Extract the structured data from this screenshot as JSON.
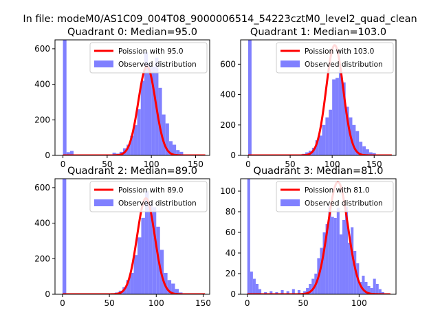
{
  "figure": {
    "suptitle": "In file: modeM0/AS1C09_004T08_9000006514_54223cztM0_level2_quad_clean"
  },
  "colors": {
    "fit_line": "#ff0000",
    "histogram": "#8080ff",
    "axes": "#000000",
    "background": "#ffffff"
  },
  "chart_data": [
    {
      "type": "bar",
      "title": "Quadrant 0: Median=95.0",
      "xlim": [
        -9,
        166
      ],
      "ylim": [
        0,
        650
      ],
      "xticks": [
        0,
        50,
        100,
        150
      ],
      "yticks": [
        0,
        200,
        400,
        600
      ],
      "legend": {
        "placement": "top-right",
        "entries": [
          "Poission with 95.0",
          "Observed distribution"
        ]
      },
      "poisson_mean": 95.0,
      "poisson_peak": 500,
      "bin_width": 4,
      "x": [
        0,
        4,
        8,
        56,
        60,
        64,
        68,
        72,
        76,
        80,
        84,
        88,
        92,
        96,
        100,
        104,
        108,
        112,
        116,
        120,
        124,
        128,
        132,
        136
      ],
      "counts": [
        650,
        18,
        25,
        15,
        10,
        20,
        40,
        60,
        110,
        170,
        260,
        420,
        580,
        520,
        500,
        550,
        380,
        230,
        180,
        80,
        60,
        30,
        20,
        5
      ]
    },
    {
      "type": "bar",
      "title": "Quadrant 1: Median=103.0",
      "xlim": [
        -9,
        176
      ],
      "ylim": [
        0,
        760
      ],
      "xticks": [
        0,
        50,
        100,
        150
      ],
      "yticks": [
        0,
        200,
        400,
        600
      ],
      "legend": {
        "placement": "top-right",
        "entries": [
          "Poission with 103.0",
          "Observed distribution"
        ]
      },
      "poisson_mean": 103.0,
      "poisson_peak": 725,
      "bin_width": 4,
      "x": [
        0,
        64,
        68,
        72,
        76,
        80,
        84,
        88,
        92,
        96,
        100,
        104,
        108,
        112,
        116,
        120,
        124,
        128,
        132,
        136,
        140,
        144,
        148
      ],
      "counts": [
        760,
        10,
        20,
        30,
        50,
        100,
        130,
        200,
        250,
        300,
        500,
        510,
        560,
        480,
        320,
        250,
        200,
        160,
        90,
        60,
        40,
        20,
        15
      ]
    },
    {
      "type": "bar",
      "title": "Quadrant 2: Median=89.0",
      "xlim": [
        -8,
        157
      ],
      "ylim": [
        0,
        650
      ],
      "xticks": [
        0,
        50,
        100,
        150
      ],
      "yticks": [
        0,
        200,
        400,
        600
      ],
      "legend": {
        "placement": "top-right",
        "entries": [
          "Poission with 89.0",
          "Observed distribution"
        ]
      },
      "poisson_mean": 89.0,
      "poisson_peak": 540,
      "bin_width": 4,
      "x": [
        0,
        52,
        56,
        60,
        64,
        68,
        72,
        76,
        80,
        84,
        88,
        92,
        96,
        100,
        104,
        108,
        112,
        116,
        120,
        124,
        128
      ],
      "counts": [
        650,
        5,
        10,
        20,
        40,
        80,
        120,
        220,
        320,
        430,
        580,
        510,
        490,
        380,
        250,
        120,
        80,
        60,
        30,
        10,
        5
      ]
    },
    {
      "type": "bar",
      "title": "Quadrant 3: Median=81.0",
      "xlim": [
        -6,
        133
      ],
      "ylim": [
        0,
        112
      ],
      "xticks": [
        0,
        50,
        100
      ],
      "yticks": [
        0,
        20,
        40,
        60,
        80,
        100
      ],
      "legend": {
        "placement": "top-right",
        "entries": [
          "Poission with 81.0",
          "Observed distribution"
        ]
      },
      "poisson_mean": 81.0,
      "poisson_peak": 109,
      "bin_width": 2.5,
      "x": [
        0,
        2.5,
        5,
        7.5,
        10,
        15,
        20,
        25,
        30,
        35,
        40,
        45,
        50,
        52.5,
        55,
        57.5,
        60,
        62.5,
        65,
        67.5,
        70,
        72.5,
        75,
        77.5,
        80,
        82.5,
        85,
        87.5,
        90,
        92.5,
        95,
        97.5,
        100,
        102.5,
        105,
        107.5,
        110,
        112.5,
        115,
        117.5,
        120
      ],
      "counts": [
        112,
        22,
        15,
        10,
        5,
        2,
        3,
        2,
        4,
        3,
        5,
        4,
        3,
        6,
        10,
        15,
        20,
        35,
        45,
        60,
        68,
        86,
        75,
        74,
        84,
        58,
        72,
        85,
        50,
        65,
        42,
        30,
        12,
        18,
        12,
        8,
        6,
        15,
        10,
        5,
        2
      ]
    }
  ]
}
